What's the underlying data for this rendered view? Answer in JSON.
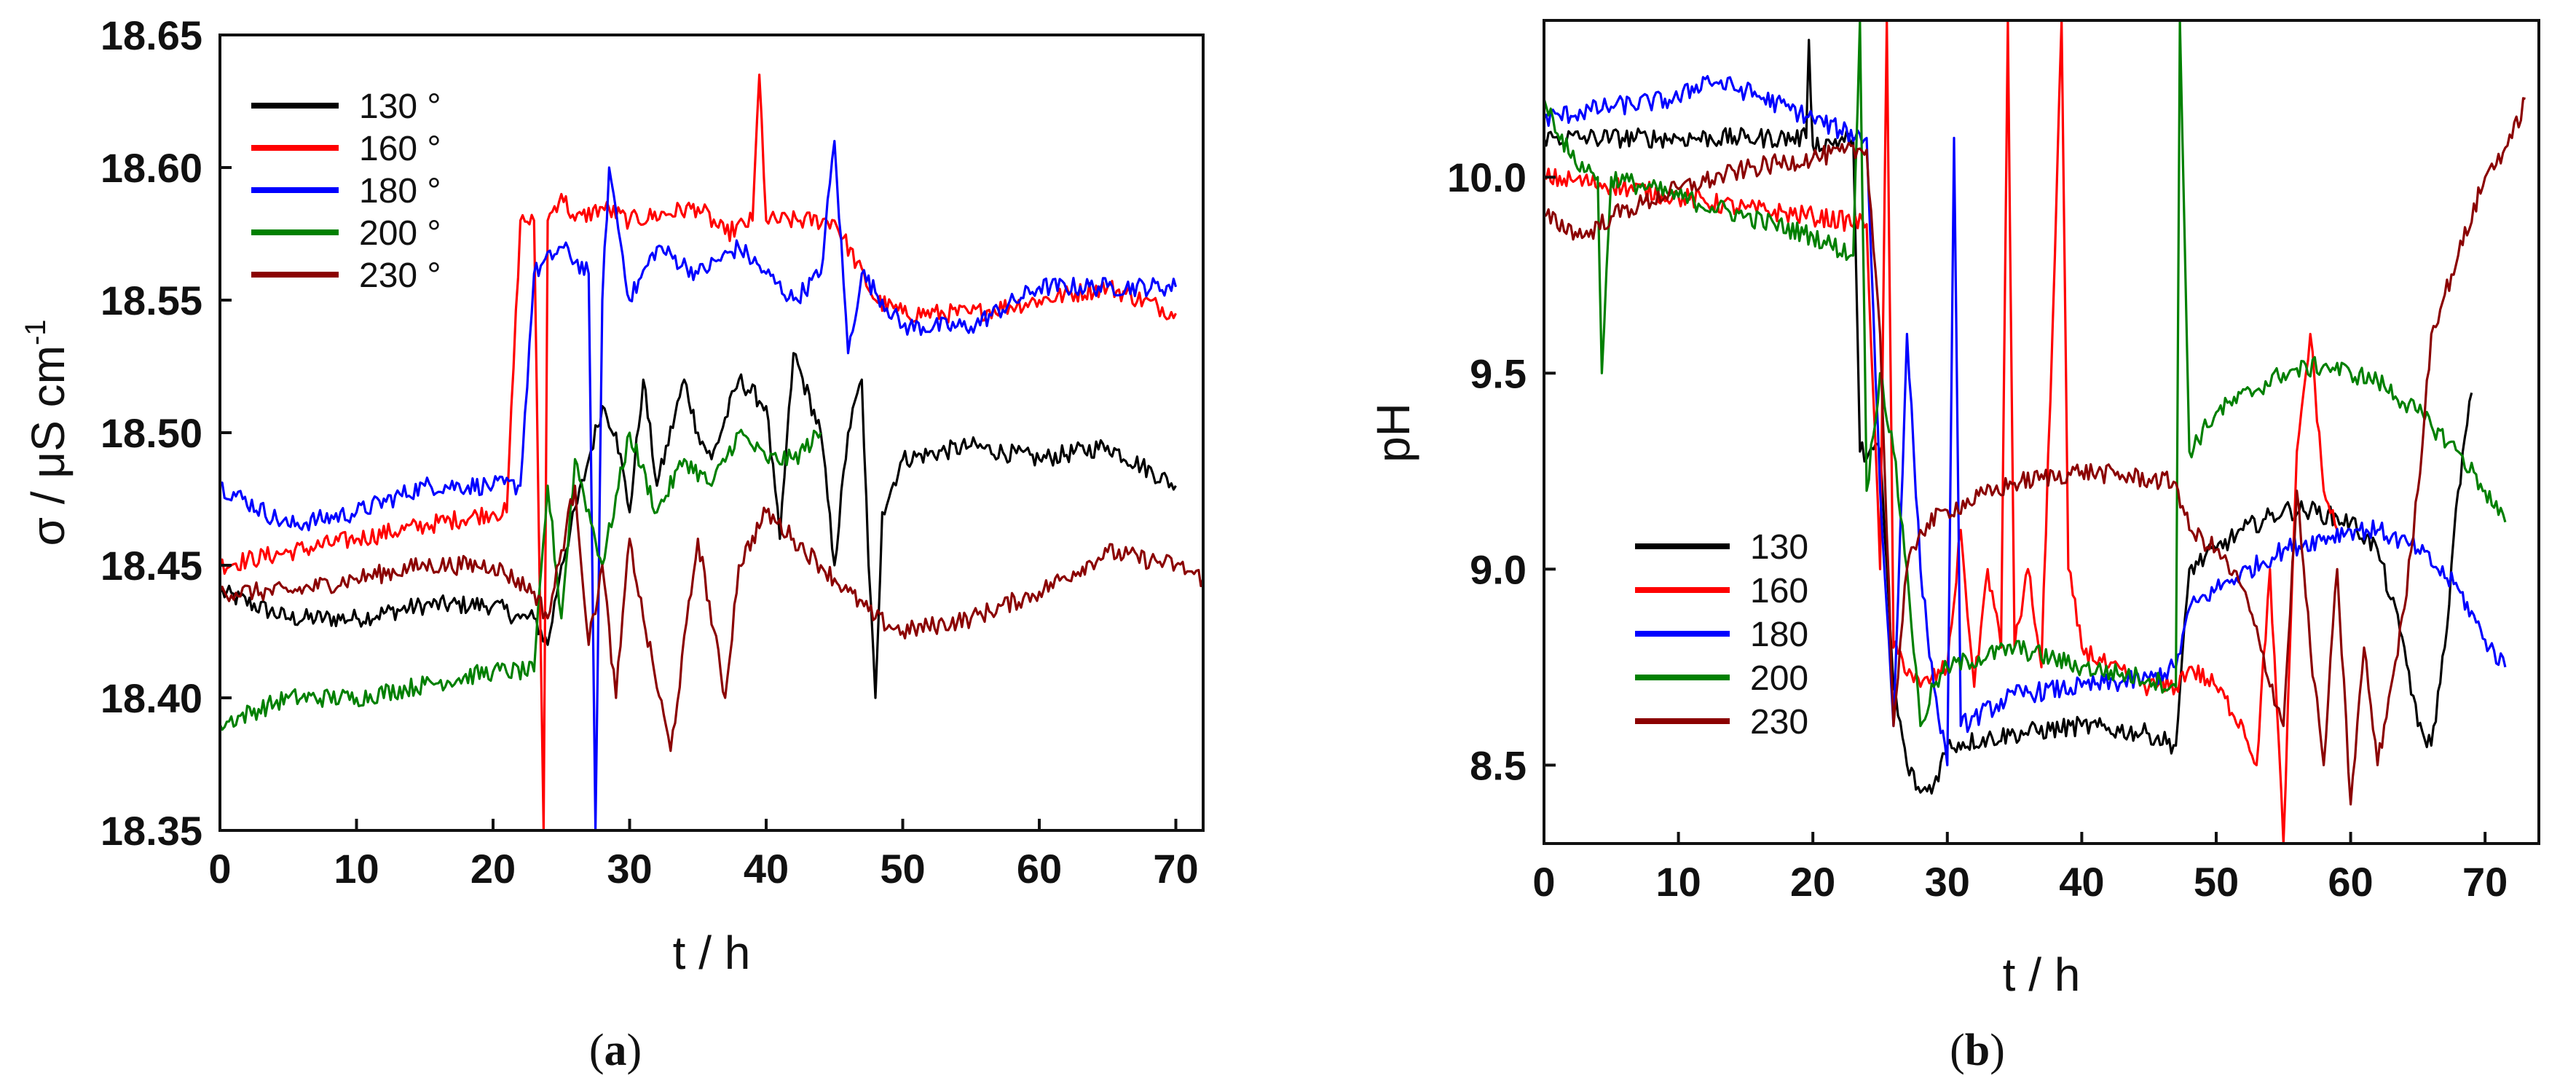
{
  "figure": {
    "captions": {
      "left_prefix": "(",
      "left_letter": "a",
      "left_suffix": ")",
      "right_prefix": "(",
      "right_letter": "b",
      "right_suffix": ")"
    }
  },
  "chart_data": [
    {
      "type": "line",
      "panel": "a",
      "title": "",
      "xlabel": "t / h",
      "ylabel": "σ / μS cm",
      "ylabel_superscript": "-1",
      "xlim": [
        0,
        72
      ],
      "ylim": [
        18.35,
        18.65
      ],
      "xticks": [
        0,
        10,
        20,
        30,
        40,
        50,
        60,
        70
      ],
      "yticks": [
        18.35,
        18.4,
        18.45,
        18.5,
        18.55,
        18.6,
        18.65
      ],
      "ytick_labels": [
        "18.35",
        "18.40",
        "18.45",
        "18.50",
        "18.55",
        "18.60",
        "18.65"
      ],
      "legend_position": "top-left",
      "series": [
        {
          "name": "130 °",
          "color": "#000000",
          "x": [
            0,
            5,
            10,
            15,
            20,
            22,
            23,
            24,
            25,
            27,
            28,
            29,
            30,
            31,
            32,
            34,
            35,
            36,
            38,
            40,
            41,
            42,
            44,
            45,
            46,
            47,
            47.5,
            48,
            48.5,
            50,
            55,
            60,
            65,
            70
          ],
          "y": [
            18.44,
            18.43,
            18.43,
            18.435,
            18.435,
            18.43,
            18.43,
            18.42,
            18.45,
            18.49,
            18.51,
            18.5,
            18.47,
            18.52,
            18.48,
            18.52,
            18.5,
            18.49,
            18.52,
            18.51,
            18.46,
            18.53,
            18.5,
            18.45,
            18.5,
            18.52,
            18.45,
            18.4,
            18.47,
            18.49,
            18.495,
            18.49,
            18.495,
            18.48
          ]
        },
        {
          "name": "160 °",
          "color": "#ff0000",
          "x": [
            0,
            5,
            10,
            15,
            20,
            21,
            22,
            23,
            23.7,
            24,
            25,
            26,
            28,
            30,
            35,
            37,
            39,
            39.5,
            40,
            45,
            48,
            50,
            55,
            60,
            65,
            70
          ],
          "y": [
            18.45,
            18.455,
            18.46,
            18.465,
            18.47,
            18.47,
            18.58,
            18.58,
            18.35,
            18.58,
            18.59,
            18.58,
            18.585,
            18.58,
            18.585,
            18.575,
            18.58,
            18.635,
            18.58,
            18.58,
            18.55,
            18.545,
            18.545,
            18.55,
            18.555,
            18.545
          ]
        },
        {
          "name": "180 °",
          "color": "#0000ff",
          "x": [
            0,
            5,
            10,
            15,
            20,
            22,
            23,
            25,
            27,
            27.5,
            28,
            28.5,
            30,
            32,
            35,
            38,
            40,
            42,
            44,
            45,
            46,
            47,
            50,
            55,
            60,
            65,
            70
          ],
          "y": [
            18.48,
            18.465,
            18.47,
            18.48,
            18.48,
            18.48,
            18.56,
            18.57,
            18.56,
            18.35,
            18.55,
            18.6,
            18.55,
            18.57,
            18.56,
            18.57,
            18.56,
            18.55,
            18.56,
            18.61,
            18.53,
            18.56,
            18.54,
            18.54,
            18.555,
            18.555,
            18.555
          ]
        },
        {
          "name": "200 °",
          "color": "#008000",
          "x": [
            0,
            5,
            10,
            15,
            20,
            23,
            24,
            25,
            26,
            28,
            30,
            32,
            34,
            36,
            38,
            40,
            42,
            44
          ],
          "y": [
            18.39,
            18.4,
            18.4,
            18.405,
            18.41,
            18.41,
            18.48,
            18.43,
            18.49,
            18.45,
            18.5,
            18.47,
            18.49,
            18.48,
            18.5,
            18.49,
            18.49,
            18.5
          ]
        },
        {
          "name": "230 °",
          "color": "#8b0000",
          "x": [
            0,
            5,
            10,
            15,
            20,
            23,
            24,
            26,
            27,
            28,
            29,
            30,
            31,
            33,
            35,
            37,
            38,
            40,
            42,
            44,
            46,
            48,
            50,
            55,
            60,
            65,
            70,
            72
          ],
          "y": [
            18.44,
            18.44,
            18.445,
            18.45,
            18.45,
            18.44,
            18.43,
            18.48,
            18.42,
            18.45,
            18.4,
            18.46,
            18.43,
            18.38,
            18.46,
            18.4,
            18.45,
            18.47,
            18.46,
            18.45,
            18.44,
            18.43,
            18.425,
            18.43,
            18.44,
            18.455,
            18.45,
            18.445
          ]
        }
      ]
    },
    {
      "type": "line",
      "panel": "b",
      "title": "",
      "xlabel": "t / h",
      "ylabel": "pH",
      "xlim": [
        0,
        74
      ],
      "ylim": [
        8.3,
        10.4
      ],
      "xticks": [
        0,
        10,
        20,
        30,
        40,
        50,
        60,
        70
      ],
      "yticks": [
        8.5,
        9.0,
        9.5,
        10.0
      ],
      "ytick_labels": [
        "8.5",
        "9.0",
        "9.5",
        "10.0"
      ],
      "legend_position": "lower-left",
      "series": [
        {
          "name": "130",
          "color": "#000000",
          "x": [
            0,
            5,
            10,
            15,
            19.5,
            19.7,
            20,
            23,
            23.5,
            25,
            26,
            27,
            28,
            29,
            30,
            35,
            40,
            45,
            47,
            48,
            50,
            52,
            55,
            57,
            60,
            62,
            64,
            65,
            66,
            67,
            68,
            69
          ],
          "y": [
            10.1,
            10.1,
            10.1,
            10.1,
            10.1,
            10.35,
            10.08,
            10.1,
            9.3,
            9.3,
            8.7,
            8.5,
            8.43,
            8.45,
            8.55,
            8.58,
            8.6,
            8.58,
            8.55,
            9.0,
            9.05,
            9.1,
            9.15,
            9.15,
            9.12,
            9.05,
            8.8,
            8.6,
            8.55,
            8.8,
            9.2,
            9.45
          ]
        },
        {
          "name": "160",
          "color": "#ff0000",
          "x": [
            0,
            5,
            10,
            15,
            20,
            24,
            25,
            25.5,
            26,
            28,
            30,
            31,
            32,
            33,
            34,
            34.5,
            35,
            36,
            37,
            38,
            38.5,
            39,
            40,
            42,
            45,
            47,
            48,
            50,
            52,
            53,
            54,
            55,
            56,
            57,
            58,
            59
          ],
          "y": [
            10.0,
            9.98,
            9.95,
            9.92,
            9.9,
            9.88,
            9.0,
            10.4,
            8.8,
            8.7,
            8.75,
            9.1,
            8.7,
            9.0,
            8.8,
            10.4,
            8.8,
            9.0,
            8.75,
            9.8,
            10.4,
            9.0,
            8.8,
            8.75,
            8.7,
            8.7,
            8.75,
            8.7,
            8.6,
            8.5,
            9.0,
            8.3,
            9.3,
            9.6,
            9.2,
            9.1
          ]
        },
        {
          "name": "180",
          "color": "#0000ff",
          "x": [
            0,
            5,
            10,
            12,
            15,
            20,
            22,
            24,
            25,
            26,
            27,
            28,
            29,
            30,
            30.5,
            31,
            35,
            40,
            45,
            47,
            48,
            50,
            55,
            60,
            62,
            65,
            68,
            70,
            71.5
          ],
          "y": [
            10.15,
            10.18,
            10.2,
            10.25,
            10.22,
            10.15,
            10.12,
            10.1,
            9.2,
            8.6,
            9.6,
            9.0,
            8.7,
            8.5,
            10.1,
            8.6,
            8.68,
            8.7,
            8.72,
            8.75,
            8.9,
            8.95,
            9.05,
            9.1,
            9.1,
            9.05,
            8.95,
            8.82,
            8.75
          ]
        },
        {
          "name": "200",
          "color": "#008000",
          "x": [
            0,
            2,
            4,
            4.3,
            5,
            10,
            15,
            20,
            23,
            23.5,
            24,
            25,
            26,
            27,
            28,
            29,
            30,
            35,
            40,
            45,
            47,
            47.3,
            48,
            50,
            55,
            58,
            60,
            62,
            65,
            68,
            70,
            71.5
          ],
          "y": [
            10.2,
            10.05,
            10.0,
            9.5,
            10.0,
            9.95,
            9.9,
            9.85,
            9.8,
            10.4,
            9.2,
            9.5,
            9.3,
            9.0,
            8.6,
            8.7,
            8.75,
            8.8,
            8.75,
            8.72,
            8.7,
            10.4,
            9.3,
            9.4,
            9.5,
            9.52,
            9.5,
            9.48,
            9.4,
            9.3,
            9.2,
            9.12
          ]
        },
        {
          "name": "230",
          "color": "#8b0000",
          "x": [
            0,
            3,
            5,
            10,
            15,
            20,
            24,
            25,
            26,
            27,
            28,
            30,
            35,
            40,
            45,
            47,
            48,
            50,
            52,
            55,
            56,
            57,
            58,
            59,
            60,
            61,
            62,
            63,
            64,
            65,
            66,
            67,
            68,
            70,
            72,
            73
          ],
          "y": [
            9.9,
            9.85,
            9.9,
            9.97,
            10.02,
            10.05,
            10.07,
            9.6,
            8.6,
            9.0,
            9.1,
            9.15,
            9.22,
            9.25,
            9.23,
            9.22,
            9.1,
            9.05,
            8.95,
            8.6,
            9.2,
            8.8,
            8.5,
            9.0,
            8.4,
            8.8,
            8.5,
            8.7,
            8.9,
            9.2,
            9.6,
            9.7,
            9.8,
            10.0,
            10.1,
            10.2
          ]
        }
      ]
    }
  ]
}
